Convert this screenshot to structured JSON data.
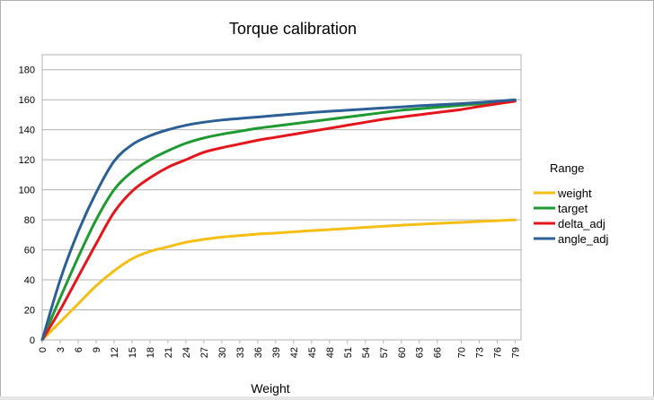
{
  "chart_data": {
    "type": "line",
    "title": "Torque calibration",
    "xlabel": "Weight",
    "ylabel": "",
    "xlim": [
      0,
      80
    ],
    "ylim": [
      0,
      190
    ],
    "yticks": [
      0,
      20,
      40,
      60,
      80,
      100,
      120,
      140,
      160,
      180
    ],
    "xticks": [
      "0",
      "3",
      "6",
      "9",
      "12",
      "15",
      "18",
      "21",
      "24",
      "27",
      "30",
      "33",
      "36",
      "39",
      "42",
      "45",
      "48",
      "51",
      "54",
      "57",
      "60",
      "63",
      "66",
      "70",
      "73",
      "76",
      "79"
    ],
    "grid": "horizontal",
    "legend": {
      "title": "Range",
      "placement": "right"
    },
    "series": [
      {
        "name": "weight",
        "color": "#f5be14",
        "points": [
          [
            0,
            0
          ],
          [
            3,
            12
          ],
          [
            6,
            24
          ],
          [
            9,
            36
          ],
          [
            12,
            46
          ],
          [
            15,
            54
          ],
          [
            18,
            59
          ],
          [
            21,
            62
          ],
          [
            24,
            65
          ],
          [
            27,
            67
          ],
          [
            30,
            68.5
          ],
          [
            33,
            69.5
          ],
          [
            36,
            70.5
          ],
          [
            39,
            71.2
          ],
          [
            42,
            72
          ],
          [
            45,
            72.8
          ],
          [
            48,
            73.5
          ],
          [
            51,
            74.2
          ],
          [
            54,
            75
          ],
          [
            57,
            75.7
          ],
          [
            60,
            76.4
          ],
          [
            63,
            77
          ],
          [
            66,
            77.6
          ],
          [
            70,
            78.3
          ],
          [
            73,
            78.9
          ],
          [
            76,
            79.4
          ],
          [
            79,
            80
          ]
        ]
      },
      {
        "name": "target",
        "color": "#1f9a32",
        "points": [
          [
            0,
            0
          ],
          [
            3,
            28
          ],
          [
            6,
            55
          ],
          [
            9,
            80
          ],
          [
            12,
            100
          ],
          [
            15,
            112
          ],
          [
            18,
            120
          ],
          [
            21,
            126
          ],
          [
            24,
            131
          ],
          [
            27,
            134.5
          ],
          [
            30,
            137
          ],
          [
            33,
            139
          ],
          [
            36,
            141
          ],
          [
            39,
            142.5
          ],
          [
            42,
            144
          ],
          [
            45,
            145.5
          ],
          [
            48,
            147
          ],
          [
            51,
            148.5
          ],
          [
            54,
            150
          ],
          [
            57,
            151.5
          ],
          [
            60,
            153
          ],
          [
            63,
            154
          ],
          [
            66,
            155
          ],
          [
            70,
            156.3
          ],
          [
            73,
            157.3
          ],
          [
            76,
            158.3
          ],
          [
            79,
            159.5
          ]
        ]
      },
      {
        "name": "delta_adj",
        "color": "#e3161b",
        "points": [
          [
            0,
            0
          ],
          [
            3,
            20
          ],
          [
            6,
            42
          ],
          [
            9,
            64
          ],
          [
            12,
            85
          ],
          [
            15,
            99
          ],
          [
            18,
            108
          ],
          [
            21,
            115
          ],
          [
            24,
            120
          ],
          [
            27,
            125
          ],
          [
            30,
            128
          ],
          [
            33,
            130.5
          ],
          [
            36,
            133
          ],
          [
            39,
            135
          ],
          [
            42,
            137
          ],
          [
            45,
            139
          ],
          [
            48,
            141
          ],
          [
            51,
            143
          ],
          [
            54,
            145
          ],
          [
            57,
            147
          ],
          [
            60,
            148.5
          ],
          [
            63,
            150
          ],
          [
            66,
            151.5
          ],
          [
            70,
            153.5
          ],
          [
            73,
            155.5
          ],
          [
            76,
            157.3
          ],
          [
            79,
            159
          ]
        ]
      },
      {
        "name": "angle_adj",
        "color": "#2b5f95",
        "points": [
          [
            0,
            0
          ],
          [
            3,
            40
          ],
          [
            6,
            72
          ],
          [
            9,
            98
          ],
          [
            12,
            119
          ],
          [
            15,
            130
          ],
          [
            18,
            136
          ],
          [
            21,
            140
          ],
          [
            24,
            143
          ],
          [
            27,
            145
          ],
          [
            30,
            146.5
          ],
          [
            33,
            147.5
          ],
          [
            36,
            148.5
          ],
          [
            39,
            149.5
          ],
          [
            42,
            150.5
          ],
          [
            45,
            151.5
          ],
          [
            48,
            152.3
          ],
          [
            51,
            153
          ],
          [
            54,
            153.8
          ],
          [
            57,
            154.5
          ],
          [
            60,
            155.2
          ],
          [
            63,
            156
          ],
          [
            66,
            156.6
          ],
          [
            70,
            157.4
          ],
          [
            73,
            158.2
          ],
          [
            76,
            159
          ],
          [
            79,
            160
          ]
        ]
      }
    ]
  }
}
